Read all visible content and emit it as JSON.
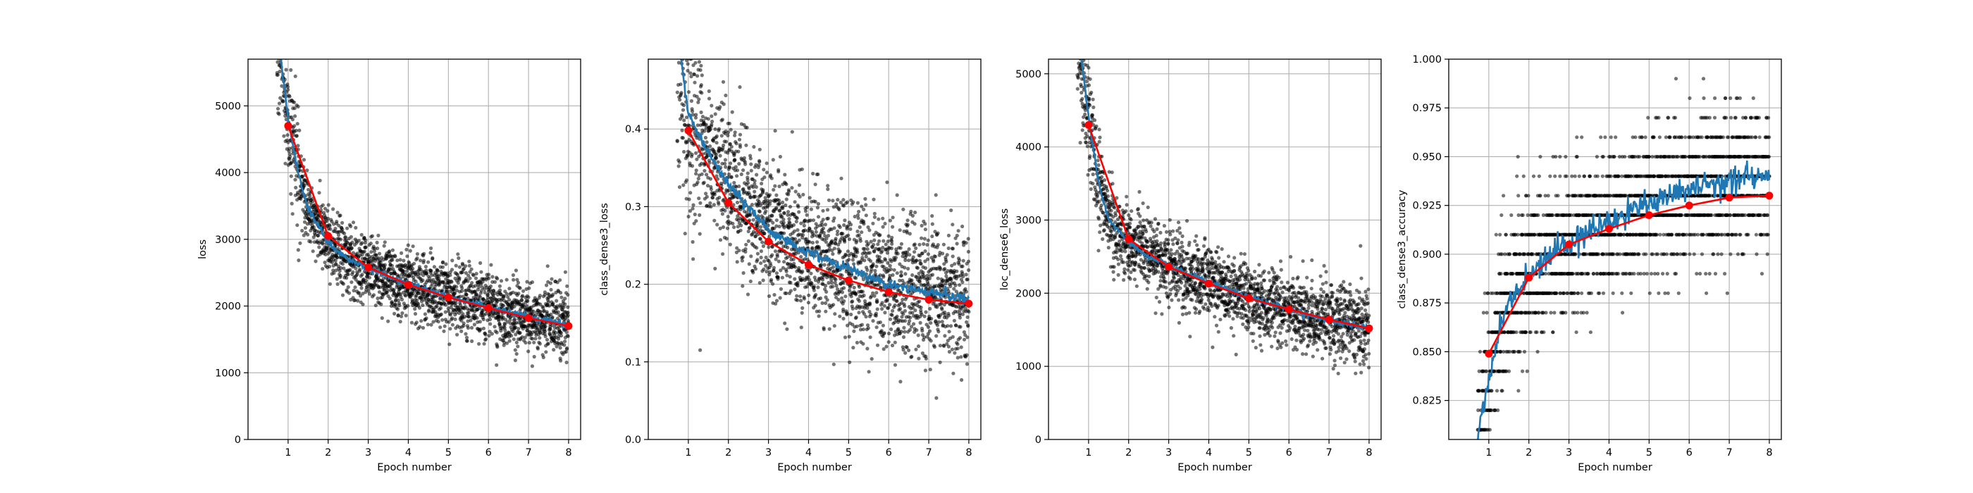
{
  "colors": {
    "scatter": "#000000",
    "smooth_line": "#1f77b4",
    "epoch_line": "#ff0000",
    "grid": "#b0b0b0"
  },
  "chart_data": [
    {
      "type": "scatter",
      "xlabel": "Epoch number",
      "ylabel": "loss",
      "xlim": [
        0.0,
        8.3
      ],
      "ylim": [
        0,
        5700
      ],
      "xticks": [
        1,
        2,
        3,
        4,
        5,
        6,
        7,
        8
      ],
      "yticks": [
        0,
        1000,
        2000,
        3000,
        4000,
        5000
      ],
      "ytick_labels": [
        "0",
        "1000",
        "2000",
        "3000",
        "4000",
        "5000"
      ],
      "grid": true,
      "series": [
        {
          "kind": "epoch_means",
          "x": [
            1,
            2,
            3,
            4,
            5,
            6,
            7,
            8
          ],
          "y": [
            4700,
            3050,
            2580,
            2320,
            2130,
            1970,
            1820,
            1700
          ]
        },
        {
          "kind": "running_mean",
          "x": [
            0.82,
            1.0,
            1.25,
            1.5,
            2.0,
            2.5,
            3.0,
            3.5,
            4.0,
            4.5,
            5.0,
            5.5,
            6.0,
            6.5,
            7.0,
            7.5,
            8.0
          ],
          "y": [
            5700,
            4800,
            4000,
            3450,
            2950,
            2700,
            2560,
            2440,
            2330,
            2230,
            2140,
            2060,
            1980,
            1910,
            1840,
            1780,
            1710
          ]
        },
        {
          "kind": "batch_losses",
          "spread": 260,
          "x_start": 0.72,
          "x_end": 8.0
        }
      ]
    },
    {
      "type": "scatter",
      "xlabel": "Epoch number",
      "ylabel": "class_dense3_loss",
      "xlim": [
        0.0,
        8.3
      ],
      "ylim": [
        0,
        0.49
      ],
      "xticks": [
        1,
        2,
        3,
        4,
        5,
        6,
        7,
        8
      ],
      "yticks": [
        0.0,
        0.1,
        0.2,
        0.3,
        0.4
      ],
      "ytick_labels": [
        "0.0",
        "0.1",
        "0.2",
        "0.3",
        "0.4"
      ],
      "grid": true,
      "series": [
        {
          "kind": "epoch_means",
          "x": [
            1,
            2,
            3,
            4,
            5,
            6,
            7,
            8
          ],
          "y": [
            0.398,
            0.305,
            0.255,
            0.225,
            0.205,
            0.19,
            0.18,
            0.175
          ]
        },
        {
          "kind": "running_mean",
          "x": [
            0.82,
            1.0,
            1.5,
            2.0,
            2.5,
            3.0,
            3.5,
            4.0,
            4.5,
            5.0,
            5.5,
            6.0,
            6.5,
            7.0,
            7.5,
            8.0
          ],
          "y": [
            0.49,
            0.42,
            0.37,
            0.33,
            0.3,
            0.27,
            0.255,
            0.24,
            0.23,
            0.22,
            0.21,
            0.2,
            0.195,
            0.19,
            0.185,
            0.18
          ]
        },
        {
          "kind": "batch_losses",
          "spread": 0.045,
          "x_start": 0.72,
          "x_end": 8.0
        }
      ]
    },
    {
      "type": "scatter",
      "xlabel": "Epoch number",
      "ylabel": "loc_dense6_loss",
      "xlim": [
        0.0,
        8.3
      ],
      "ylim": [
        0,
        5200
      ],
      "xticks": [
        1,
        2,
        3,
        4,
        5,
        6,
        7,
        8
      ],
      "yticks": [
        0,
        1000,
        2000,
        3000,
        4000,
        5000
      ],
      "ytick_labels": [
        "0",
        "1000",
        "2000",
        "3000",
        "4000",
        "5000"
      ],
      "grid": true,
      "series": [
        {
          "kind": "epoch_means",
          "x": [
            1,
            2,
            3,
            4,
            5,
            6,
            7,
            8
          ],
          "y": [
            4300,
            2740,
            2360,
            2130,
            1930,
            1780,
            1640,
            1520
          ]
        },
        {
          "kind": "running_mean",
          "x": [
            0.82,
            1.0,
            1.25,
            1.5,
            2.0,
            2.5,
            3.0,
            3.5,
            4.0,
            4.5,
            5.0,
            5.5,
            6.0,
            6.5,
            7.0,
            7.5,
            8.0
          ],
          "y": [
            5200,
            4400,
            3500,
            3000,
            2700,
            2500,
            2380,
            2260,
            2150,
            2040,
            1940,
            1860,
            1780,
            1700,
            1630,
            1570,
            1520
          ]
        },
        {
          "kind": "batch_losses",
          "spread": 250,
          "x_start": 0.72,
          "x_end": 8.0
        }
      ]
    },
    {
      "type": "scatter",
      "xlabel": "Epoch number",
      "ylabel": "class_dense3_accuracy",
      "xlim": [
        0.0,
        8.3
      ],
      "ylim": [
        0.805,
        1.0
      ],
      "xticks": [
        1,
        2,
        3,
        4,
        5,
        6,
        7,
        8
      ],
      "yticks": [
        0.825,
        0.85,
        0.875,
        0.9,
        0.925,
        0.95,
        0.975,
        1.0
      ],
      "ytick_labels": [
        "0.825",
        "0.850",
        "0.875",
        "0.900",
        "0.925",
        "0.950",
        "0.975",
        "1.000"
      ],
      "grid": true,
      "series": [
        {
          "kind": "epoch_means",
          "x": [
            1,
            2,
            3,
            4,
            5,
            6,
            7,
            8
          ],
          "y": [
            0.849,
            0.888,
            0.905,
            0.913,
            0.92,
            0.925,
            0.929,
            0.93
          ]
        },
        {
          "kind": "running_mean",
          "x": [
            0.72,
            1.0,
            1.25,
            1.5,
            2.0,
            2.5,
            3.0,
            3.5,
            4.0,
            4.5,
            5.0,
            5.5,
            6.0,
            6.5,
            7.0,
            7.5,
            8.0
          ],
          "y": [
            0.805,
            0.835,
            0.86,
            0.875,
            0.888,
            0.9,
            0.906,
            0.912,
            0.917,
            0.922,
            0.927,
            0.93,
            0.933,
            0.935,
            0.937,
            0.939,
            0.94
          ]
        },
        {
          "kind": "batch_accuracy",
          "step": 0.01,
          "spread": 0.018,
          "x_start": 0.72,
          "x_end": 8.0
        }
      ]
    }
  ]
}
